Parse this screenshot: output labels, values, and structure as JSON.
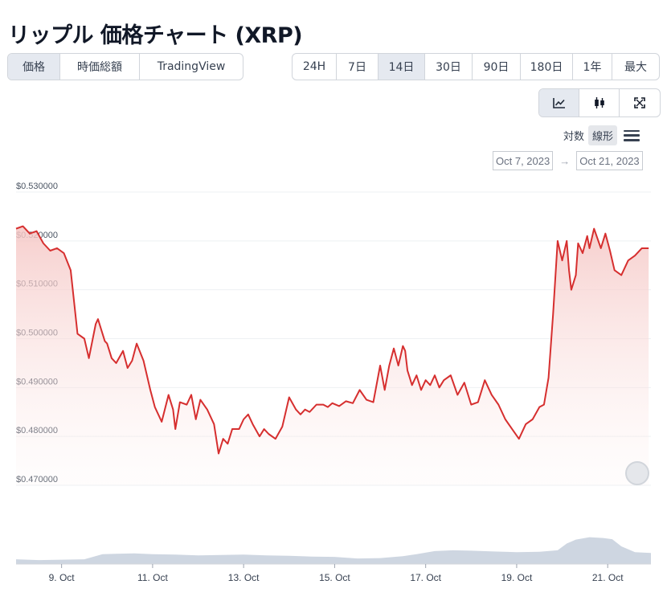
{
  "page": {
    "title": "リップル 価格チャート (XRP)"
  },
  "view_tabs": [
    {
      "label": "価格",
      "active": true
    },
    {
      "label": "時価総額",
      "active": false
    },
    {
      "label": "TradingView",
      "active": false
    }
  ],
  "range_tabs": [
    {
      "label": "24H",
      "active": false
    },
    {
      "label": "7日",
      "active": false
    },
    {
      "label": "14日",
      "active": true
    },
    {
      "label": "30日",
      "active": false
    },
    {
      "label": "90日",
      "active": false
    },
    {
      "label": "180日",
      "active": false
    },
    {
      "label": "1年",
      "active": false
    },
    {
      "label": "最大",
      "active": false
    }
  ],
  "chart_type_tabs": [
    {
      "icon": "line-chart-icon",
      "active": true
    },
    {
      "icon": "candlestick-icon",
      "active": false
    },
    {
      "icon": "fullscreen-icon",
      "active": false
    }
  ],
  "scale": {
    "log_label": "対数",
    "linear_label": "線形",
    "active": "linear"
  },
  "date_range": {
    "from": "Oct 7, 2023",
    "arrow": "→",
    "to": "Oct 21, 2023"
  },
  "colors": {
    "line": "#d62f2f",
    "area_top": "#f5c6c4",
    "volume": "#c9d1de",
    "grid": "#eef0f3",
    "active_bg": "#e5e9f0"
  },
  "chart_data": {
    "type": "line",
    "title": "",
    "xlabel": "",
    "ylabel": "",
    "ylim": [
      0.47,
      0.53
    ],
    "y_ticks": [
      "$0.530000",
      "$0.520000",
      "$0.510000",
      "$0.500000",
      "$0.490000",
      "$0.480000",
      "$0.470000"
    ],
    "y_tick_values": [
      0.53,
      0.52,
      0.51,
      0.5,
      0.49,
      0.48,
      0.47
    ],
    "x_ticks": [
      "9. Oct",
      "11. Oct",
      "13. Oct",
      "15. Oct",
      "17. Oct",
      "19. Oct",
      "21. Oct"
    ],
    "x_tick_values": [
      2,
      4,
      6,
      8,
      10,
      12,
      14
    ],
    "x_range": [
      1.0,
      14.95
    ],
    "grid": true,
    "series": [
      {
        "x": [
          1.0,
          1.15,
          1.3,
          1.45,
          1.6,
          1.75,
          1.9,
          2.05,
          2.2,
          2.35,
          2.5,
          2.6,
          2.75,
          2.8,
          2.9,
          2.95,
          3.0,
          3.1,
          3.2,
          3.35,
          3.45,
          3.55,
          3.65,
          3.8,
          3.95,
          4.05,
          4.2,
          4.35,
          4.45,
          4.5,
          4.6,
          4.75,
          4.85,
          4.95,
          5.05,
          5.2,
          5.35,
          5.45,
          5.55,
          5.65,
          5.75,
          5.9,
          6.0,
          6.1,
          6.2,
          6.35,
          6.45,
          6.55,
          6.7,
          6.85,
          7.0,
          7.15,
          7.25,
          7.35,
          7.45,
          7.6,
          7.75,
          7.85,
          7.95,
          8.1,
          8.25,
          8.4,
          8.55,
          8.7,
          8.85,
          9.0,
          9.1,
          9.2,
          9.3,
          9.4,
          9.5,
          9.55,
          9.6,
          9.7,
          9.8,
          9.9,
          10.0,
          10.1,
          10.2,
          10.3,
          10.4,
          10.55,
          10.7,
          10.85,
          11.0,
          11.15,
          11.3,
          11.45,
          11.6,
          11.75,
          11.9,
          12.05,
          12.2,
          12.35,
          12.5,
          12.6,
          12.7,
          12.8,
          12.9,
          13.0,
          13.1,
          13.15,
          13.2,
          13.3,
          13.35,
          13.45,
          13.55,
          13.6,
          13.7,
          13.85,
          13.95,
          14.05,
          14.15,
          14.3,
          14.45,
          14.6,
          14.75,
          14.9
        ],
        "y": [
          0.5225,
          0.523,
          0.5215,
          0.522,
          0.5195,
          0.518,
          0.5185,
          0.5175,
          0.514,
          0.501,
          0.5,
          0.496,
          0.503,
          0.504,
          0.501,
          0.4995,
          0.499,
          0.496,
          0.495,
          0.4975,
          0.494,
          0.4955,
          0.499,
          0.4955,
          0.4895,
          0.486,
          0.483,
          0.4885,
          0.4855,
          0.4815,
          0.487,
          0.4865,
          0.4885,
          0.4835,
          0.4875,
          0.4855,
          0.4825,
          0.4765,
          0.4795,
          0.4785,
          0.4815,
          0.4815,
          0.4835,
          0.4845,
          0.4825,
          0.48,
          0.4815,
          0.4805,
          0.4795,
          0.482,
          0.488,
          0.4855,
          0.4845,
          0.4855,
          0.485,
          0.4865,
          0.4865,
          0.486,
          0.4868,
          0.4862,
          0.4872,
          0.4868,
          0.4895,
          0.4875,
          0.487,
          0.4945,
          0.4895,
          0.4945,
          0.498,
          0.4945,
          0.4985,
          0.4975,
          0.4935,
          0.4905,
          0.4925,
          0.4895,
          0.4915,
          0.4905,
          0.4925,
          0.49,
          0.4915,
          0.4925,
          0.4885,
          0.491,
          0.4865,
          0.487,
          0.4915,
          0.4885,
          0.4865,
          0.4835,
          0.4815,
          0.4795,
          0.4825,
          0.4835,
          0.486,
          0.4865,
          0.492,
          0.505,
          0.52,
          0.516,
          0.52,
          0.514,
          0.51,
          0.513,
          0.5195,
          0.5175,
          0.521,
          0.5185,
          0.5225,
          0.5185,
          0.5215,
          0.518,
          0.514,
          0.513,
          0.516,
          0.517,
          0.5185,
          0.5185
        ]
      }
    ],
    "volume": {
      "ylim": [
        0,
        1
      ],
      "x": [
        1.0,
        1.5,
        2.0,
        2.5,
        2.9,
        3.2,
        3.6,
        4.0,
        4.5,
        5.0,
        5.5,
        6.0,
        6.5,
        7.0,
        7.5,
        8.0,
        8.5,
        9.0,
        9.5,
        9.8,
        10.2,
        10.6,
        11.0,
        11.5,
        12.0,
        12.5,
        12.9,
        13.1,
        13.3,
        13.6,
        13.9,
        14.1,
        14.3,
        14.6,
        14.95
      ],
      "y": [
        0.12,
        0.1,
        0.11,
        0.12,
        0.25,
        0.26,
        0.27,
        0.25,
        0.24,
        0.22,
        0.23,
        0.24,
        0.22,
        0.21,
        0.19,
        0.18,
        0.14,
        0.15,
        0.2,
        0.25,
        0.33,
        0.35,
        0.34,
        0.32,
        0.3,
        0.31,
        0.35,
        0.52,
        0.62,
        0.68,
        0.66,
        0.63,
        0.45,
        0.3,
        0.28
      ]
    }
  }
}
